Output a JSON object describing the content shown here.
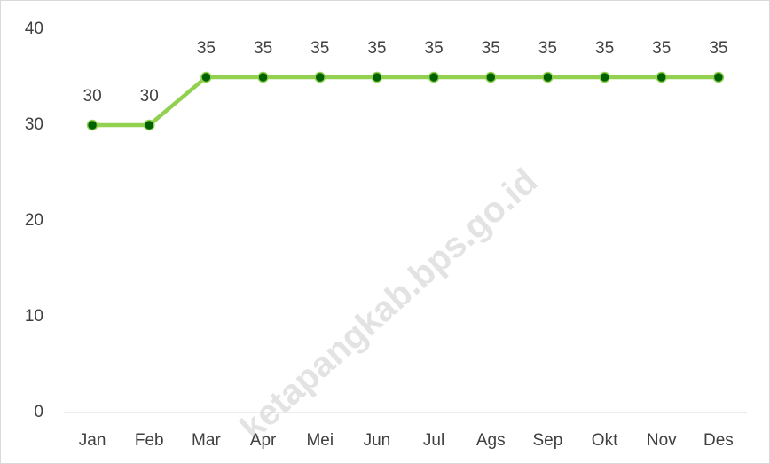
{
  "chart_data": {
    "type": "line",
    "categories": [
      "Jan",
      "Feb",
      "Mar",
      "Apr",
      "Mei",
      "Jun",
      "Jul",
      "Ags",
      "Sep",
      "Okt",
      "Nov",
      "Des"
    ],
    "series": [
      {
        "color": "#92d050",
        "values": [
          30,
          30,
          35,
          35,
          35,
          35,
          35,
          35,
          35,
          35,
          35,
          35
        ]
      }
    ],
    "ylim": [
      0,
      40
    ],
    "yticks": [
      0,
      10,
      20,
      30,
      40
    ],
    "grid": false,
    "marker_color": "#006100",
    "watermark": "ketapangkab.bps.go.id"
  }
}
